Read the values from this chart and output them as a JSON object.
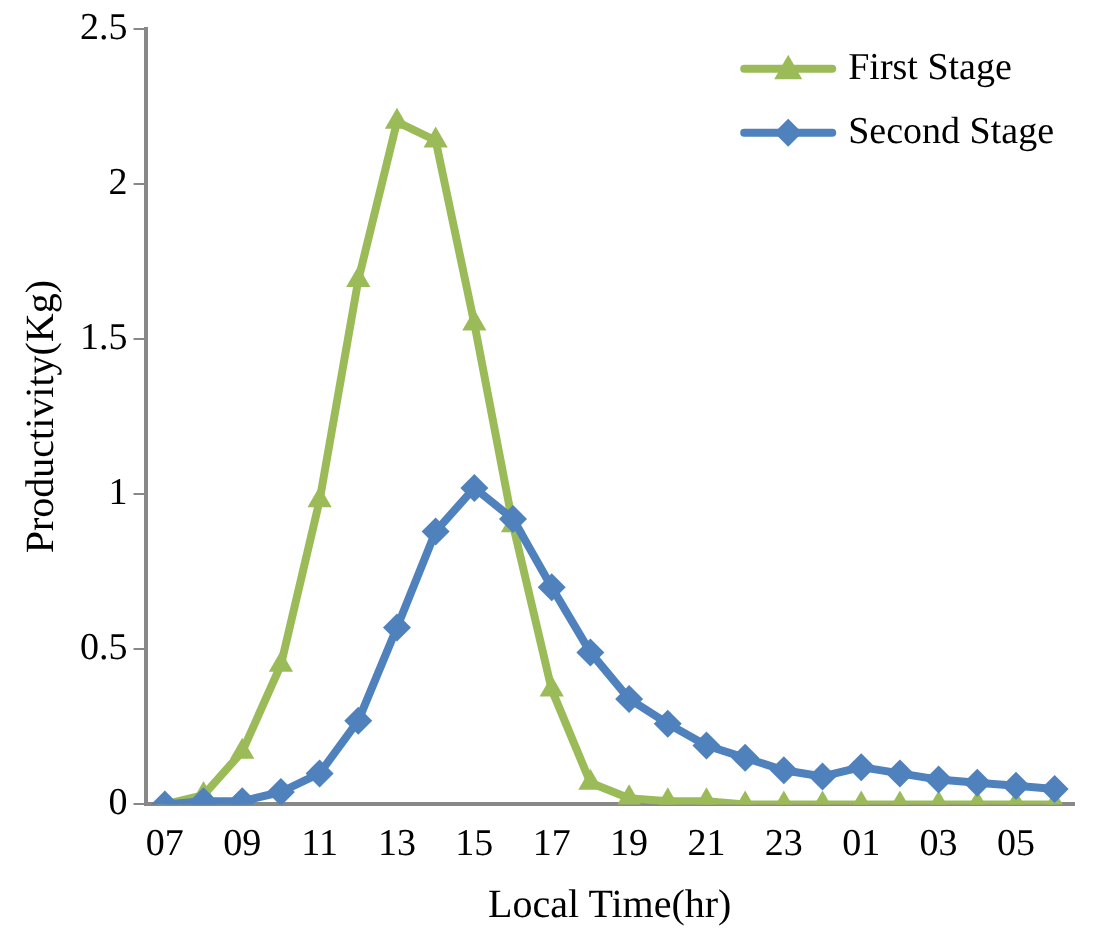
{
  "chart_data": {
    "type": "line",
    "xlabel": "Local Time(hr)",
    "ylabel": "Productivity(Kg)",
    "categories": [
      "07",
      null,
      "09",
      null,
      "11",
      null,
      "13",
      null,
      "15",
      null,
      "17",
      null,
      "19",
      null,
      "21",
      null,
      "23",
      null,
      "01",
      null,
      "03",
      null,
      "05",
      null
    ],
    "series": [
      {
        "name": "First Stage",
        "color": "#9bbb59",
        "marker": "triangle",
        "values": [
          0,
          0.03,
          0.17,
          0.45,
          0.98,
          1.69,
          2.2,
          2.14,
          1.55,
          0.9,
          0.37,
          0.07,
          0.02,
          0.01,
          0.01,
          0,
          0,
          0,
          0,
          0,
          0,
          0,
          0,
          0
        ]
      },
      {
        "name": "Second Stage",
        "color": "#4f81bd",
        "marker": "diamond",
        "values": [
          0,
          0.01,
          0.01,
          0.04,
          0.1,
          0.27,
          0.57,
          0.88,
          1.02,
          0.92,
          0.7,
          0.49,
          0.34,
          0.26,
          0.19,
          0.15,
          0.11,
          0.09,
          0.12,
          0.1,
          0.08,
          0.07,
          0.06,
          0.05
        ]
      }
    ],
    "ylim": [
      0,
      2.5
    ],
    "yticks": [
      0,
      0.5,
      1,
      1.5,
      2,
      2.5
    ],
    "grid": false,
    "legend": "top right",
    "line_style": "solid"
  }
}
